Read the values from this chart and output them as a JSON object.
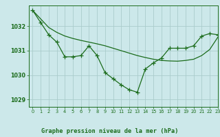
{
  "title": "Graphe pression niveau de la mer (hPa)",
  "background_color": "#cce8ea",
  "grid_color": "#aacccc",
  "line_color": "#1a6b1a",
  "xlim": [
    -0.5,
    23
  ],
  "ylim": [
    1028.7,
    1032.85
  ],
  "yticks": [
    1029,
    1030,
    1031,
    1032
  ],
  "xticks": [
    0,
    1,
    2,
    3,
    4,
    5,
    6,
    7,
    8,
    9,
    10,
    11,
    12,
    13,
    14,
    15,
    16,
    17,
    18,
    19,
    20,
    21,
    22,
    23
  ],
  "series_smooth": {
    "x": [
      0,
      1,
      2,
      3,
      4,
      5,
      6,
      7,
      8,
      9,
      10,
      11,
      12,
      13,
      14,
      15,
      16,
      17,
      18,
      19,
      20,
      21,
      22,
      23
    ],
    "y": [
      1032.65,
      1032.3,
      1031.95,
      1031.75,
      1031.6,
      1031.5,
      1031.42,
      1031.35,
      1031.28,
      1031.2,
      1031.1,
      1031.0,
      1030.9,
      1030.8,
      1030.72,
      1030.65,
      1030.6,
      1030.58,
      1030.57,
      1030.6,
      1030.65,
      1030.8,
      1031.05,
      1031.55
    ]
  },
  "series_wiggly": {
    "x": [
      0,
      1,
      2,
      3,
      4,
      5,
      6,
      7,
      8,
      9,
      10,
      11,
      12,
      13,
      14,
      15,
      16,
      17,
      18,
      19,
      20,
      21,
      22,
      23
    ],
    "y": [
      1032.65,
      1032.15,
      1031.65,
      1031.35,
      1030.75,
      1030.75,
      1030.8,
      1031.2,
      1030.8,
      1030.1,
      1029.85,
      1029.6,
      1029.4,
      1029.3,
      1030.25,
      1030.5,
      1030.7,
      1031.1,
      1031.1,
      1031.1,
      1031.2,
      1031.6,
      1031.7,
      1031.65
    ]
  }
}
